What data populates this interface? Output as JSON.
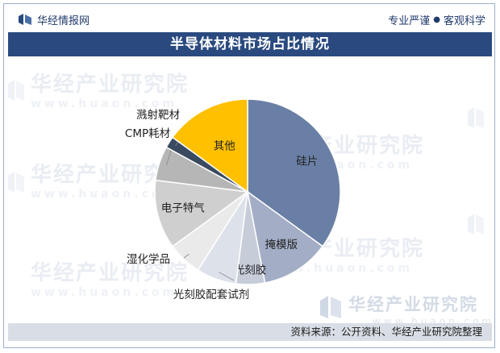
{
  "header": {
    "brand": "华经情报网",
    "slogan_part1": "专业严谨",
    "slogan_part2": "客观科学"
  },
  "title": "半导体材料市场占比情况",
  "watermark": {
    "cn": "华经产业研究院",
    "url": "www.huaon.com"
  },
  "chart_data": {
    "type": "pie",
    "title": "半导体材料市场占比情况",
    "start_angle_deg": 0,
    "direction": "clockwise",
    "slices": [
      {
        "label": "硅片",
        "value": 35.0,
        "color": "#6a7fa5"
      },
      {
        "label": "掩模版",
        "value": 12.0,
        "color": "#a3adc6"
      },
      {
        "label": "光刻胶",
        "value": 5.0,
        "color": "#c6cdd9"
      },
      {
        "label": "光刻胶配套试剂",
        "value": 7.0,
        "color": "#dde2ea"
      },
      {
        "label": "湿化学品",
        "value": 6.0,
        "color": "#eaeaea"
      },
      {
        "label": "电子特气",
        "value": 12.0,
        "color": "#cfcfcf"
      },
      {
        "label": "CMP耗材",
        "value": 6.0,
        "color": "#b6b6b6"
      },
      {
        "label": "溅射靶材",
        "value": 2.0,
        "color": "#3a4a60"
      },
      {
        "label": "其他",
        "value": 15.0,
        "color": "#ffc000"
      }
    ]
  },
  "source": "资料来源：公开资料、华经产业研究院整理"
}
